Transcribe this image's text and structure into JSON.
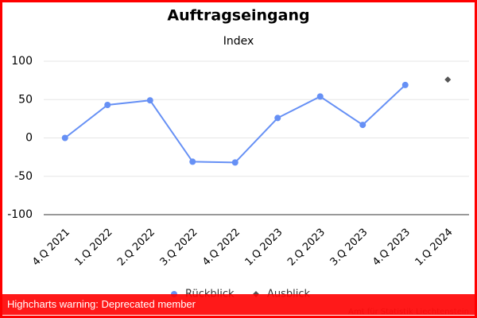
{
  "chart_data": {
    "type": "line",
    "title": "Auftragseingang",
    "subtitle": "Index",
    "categories": [
      "4.Q 2021",
      "1.Q 2022",
      "2.Q 2022",
      "3.Q 2022",
      "4.Q 2022",
      "1.Q 2023",
      "2.Q 2023",
      "3.Q 2023",
      "4.Q 2023",
      "1.Q 2024"
    ],
    "series": [
      {
        "name": "Rückblick",
        "color": "#6690f5",
        "marker": "circle",
        "values": [
          0,
          43,
          49,
          -31,
          -32,
          26,
          54,
          17,
          69,
          null
        ]
      },
      {
        "name": "Ausblick",
        "color": "#555555",
        "marker": "diamond",
        "values": [
          null,
          null,
          null,
          null,
          null,
          null,
          null,
          null,
          null,
          76
        ]
      }
    ],
    "ylim": [
      -100,
      100
    ],
    "yticks": [
      -100,
      -50,
      0,
      50,
      100
    ],
    "grid": true,
    "legend": "bottom",
    "credits": "Amt für Statistik Liechtenstein"
  },
  "warning": "Highcharts warning: Deprecated member"
}
